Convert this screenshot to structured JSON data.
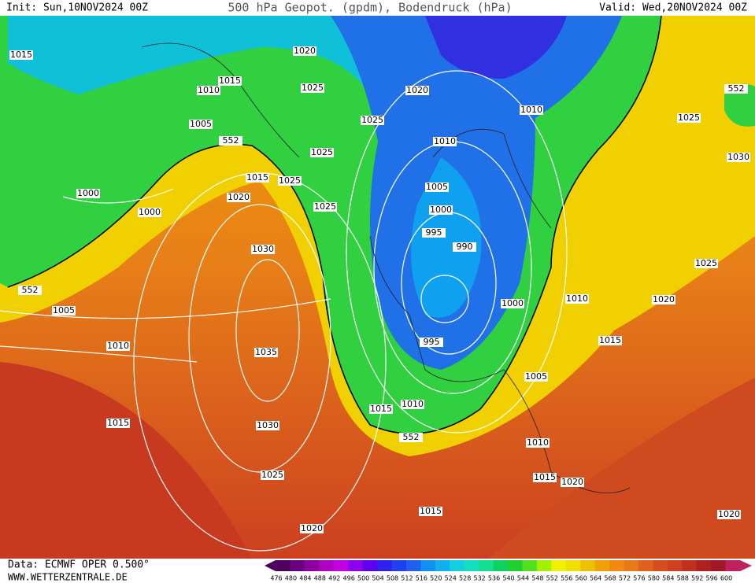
{
  "header": {
    "init": "Init: Sun,10NOV2024 00Z",
    "title": "500 hPa Geopot. (gpdm), Bodendruck (hPa)",
    "valid": "Valid: Wed,20NOV2024 00Z"
  },
  "isobar_labels": [
    "1015",
    "1020",
    "1015",
    "1010",
    "1025",
    "1020",
    "1025",
    "1010",
    "1005",
    "1010",
    "1025",
    "552",
    "552",
    "1025",
    "1030",
    "1015",
    "1025",
    "1005",
    "1000",
    "1020",
    "1025",
    "1000",
    "1000",
    "995",
    "990",
    "1030",
    "1025",
    "552",
    "1010",
    "1020",
    "1000",
    "1005",
    "1010",
    "995",
    "1015",
    "1035",
    "1005",
    "1015",
    "1010",
    "1015",
    "1030",
    "552",
    "1010",
    "1025",
    "1015",
    "1020",
    "1015",
    "1020",
    "1020"
  ],
  "colorbar": {
    "labels": [
      "476",
      "480",
      "484",
      "488",
      "492",
      "496",
      "500",
      "504",
      "508",
      "512",
      "516",
      "520",
      "524",
      "528",
      "532",
      "536",
      "540",
      "544",
      "548",
      "552",
      "556",
      "560",
      "564",
      "568",
      "572",
      "576",
      "580",
      "584",
      "588",
      "592",
      "596",
      "600"
    ],
    "colors": [
      "#4b0060",
      "#6a007f",
      "#8c00a0",
      "#b000c0",
      "#c000e0",
      "#9000f0",
      "#6000f0",
      "#3020f0",
      "#2040f0",
      "#2060f0",
      "#1090f0",
      "#10b0f0",
      "#10d0e0",
      "#10e0c0",
      "#10e090",
      "#10d060",
      "#20d030",
      "#50e020",
      "#a0f000",
      "#f0f000",
      "#f0e000",
      "#f0c000",
      "#f0a000",
      "#f08a10",
      "#e87818",
      "#e06020",
      "#d84d20",
      "#d04020",
      "#c03020",
      "#b02020",
      "#a01828",
      "#c02060"
    ]
  },
  "footer": {
    "source": "Data: ECMWF OPER 0.500°",
    "site": "WWW.WETTERZENTRALE.DE"
  }
}
